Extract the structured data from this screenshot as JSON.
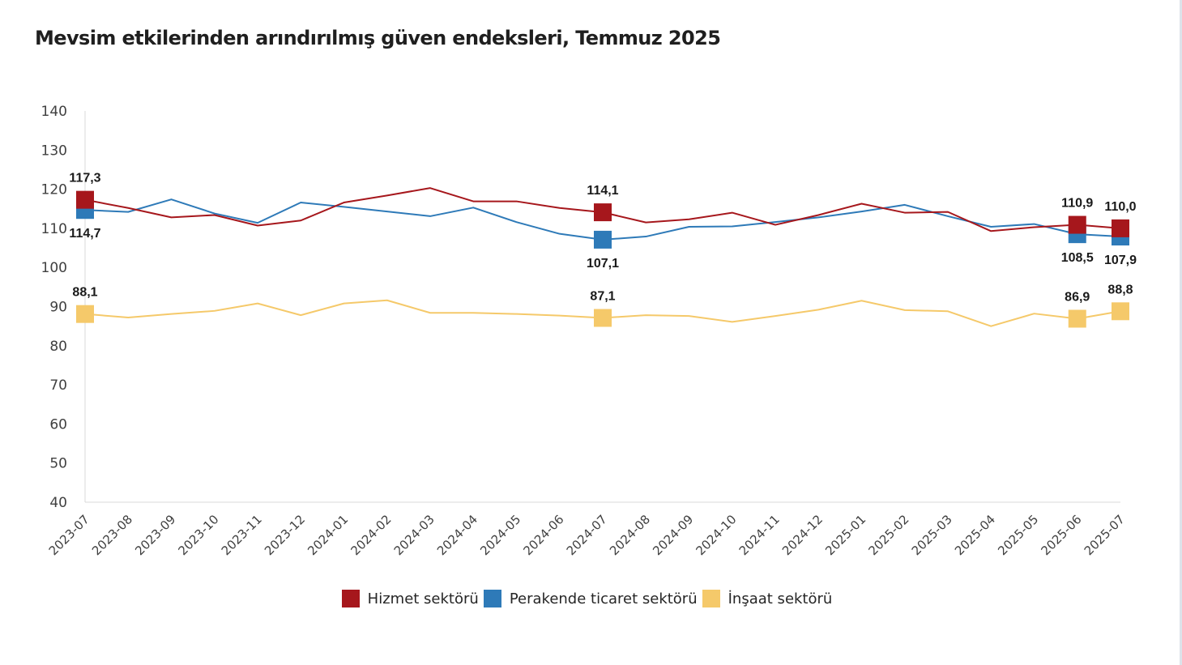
{
  "chart_data": {
    "type": "line",
    "title": "Mevsim etkilerinden arındırılmış güven endeksleri, Temmuz 2025",
    "xlabel": "",
    "ylabel": "",
    "ylim": [
      40,
      140
    ],
    "yticks": [
      "40",
      "50",
      "60",
      "70",
      "80",
      "90",
      "100",
      "110",
      "120",
      "130",
      "140"
    ],
    "grid": false,
    "legend_position": "bottom-center",
    "categories": [
      "2023-07",
      "2023-08",
      "2023-09",
      "2023-10",
      "2023-11",
      "2023-12",
      "2024-01",
      "2024-02",
      "2024-03",
      "2024-04",
      "2024-05",
      "2024-06",
      "2024-07",
      "2024-08",
      "2024-09",
      "2024-10",
      "2024-11",
      "2024-12",
      "2025-01",
      "2025-02",
      "2025-03",
      "2025-04",
      "2025-05",
      "2025-06",
      "2025-07"
    ],
    "series": [
      {
        "name": "Hizmet sektörü",
        "color": "#a6171c",
        "values": [
          117.3,
          115.2,
          112.8,
          113.4,
          110.7,
          112.0,
          116.6,
          118.4,
          120.3,
          116.9,
          116.9,
          115.2,
          114.1,
          111.5,
          112.3,
          114.0,
          110.9,
          113.4,
          116.3,
          114.0,
          114.2,
          109.3,
          110.3,
          110.9,
          110.0
        ],
        "labels": [
          {
            "index": 0,
            "text": "117,3",
            "pos": "above"
          },
          {
            "index": 12,
            "text": "114,1",
            "pos": "above"
          },
          {
            "index": 23,
            "text": "110,9",
            "pos": "above"
          },
          {
            "index": 24,
            "text": "110,0",
            "pos": "above"
          }
        ]
      },
      {
        "name": "Perakende ticaret sektörü",
        "color": "#2e7ab8",
        "values": [
          114.7,
          114.2,
          117.4,
          113.8,
          111.4,
          116.6,
          115.5,
          114.3,
          113.1,
          115.3,
          111.6,
          108.6,
          107.1,
          107.9,
          110.4,
          110.5,
          111.6,
          112.8,
          114.3,
          116.0,
          113.1,
          110.4,
          111.1,
          108.5,
          107.9
        ],
        "labels": [
          {
            "index": 0,
            "text": "114,7",
            "pos": "below"
          },
          {
            "index": 12,
            "text": "107,1",
            "pos": "below"
          },
          {
            "index": 23,
            "text": "108,5",
            "pos": "below"
          },
          {
            "index": 24,
            "text": "107,9",
            "pos": "below"
          }
        ]
      },
      {
        "name": "İnşaat sektörü",
        "color": "#f5c96a",
        "values": [
          88.1,
          87.2,
          88.1,
          88.9,
          90.8,
          87.8,
          90.8,
          91.6,
          88.4,
          88.4,
          88.1,
          87.7,
          87.1,
          87.8,
          87.6,
          86.1,
          87.6,
          89.2,
          91.5,
          89.1,
          88.8,
          85.0,
          88.2,
          86.9,
          88.8
        ],
        "labels": [
          {
            "index": 0,
            "text": "88,1",
            "pos": "above"
          },
          {
            "index": 12,
            "text": "87,1",
            "pos": "above"
          },
          {
            "index": 23,
            "text": "86,9",
            "pos": "above"
          },
          {
            "index": 24,
            "text": "88,8",
            "pos": "above"
          }
        ]
      }
    ]
  }
}
